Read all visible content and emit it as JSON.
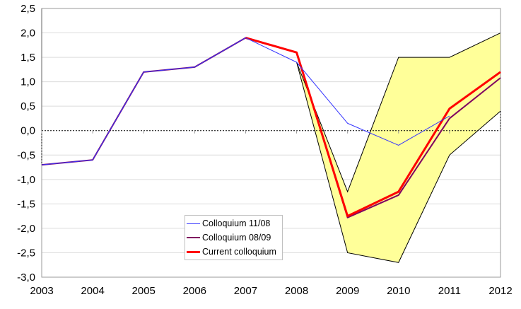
{
  "chart_data": {
    "type": "line",
    "title": "",
    "xlabel": "",
    "ylabel": "",
    "x": [
      "2003",
      "2004",
      "2005",
      "2006",
      "2007",
      "2008",
      "2009",
      "2010",
      "2011",
      "2012"
    ],
    "ylim": [
      -3.0,
      2.5
    ],
    "yticks": [
      "2,5",
      "2,0",
      "1,5",
      "1,0",
      "0,5",
      "0,0",
      "-0,5",
      "-1,0",
      "-1,5",
      "-2,0",
      "-2,5",
      "-3,0"
    ],
    "grid": true,
    "legend_position": "lower-center inside plot",
    "series": [
      {
        "name": "Colloquium 11/08",
        "color": "#3333ff",
        "width": 1,
        "values": [
          -0.7,
          -0.6,
          1.2,
          1.3,
          1.9,
          1.4,
          0.15,
          -0.3,
          0.3,
          null
        ]
      },
      {
        "name": "Colloquium 08/09",
        "color": "#800060",
        "width": 2,
        "values": [
          -0.7,
          -0.6,
          1.2,
          1.3,
          1.9,
          1.6,
          -1.78,
          -1.32,
          0.25,
          1.08
        ]
      },
      {
        "name": "Current colloquium",
        "color": "#ff0000",
        "width": 3,
        "values": [
          null,
          null,
          null,
          null,
          1.9,
          1.6,
          -1.75,
          -1.25,
          0.45,
          1.2
        ]
      }
    ],
    "band": {
      "fill": "#ffff99",
      "upper": [
        null,
        null,
        null,
        null,
        null,
        1.4,
        -1.25,
        1.5,
        1.5,
        2.0
      ],
      "lower": [
        null,
        null,
        null,
        null,
        null,
        1.4,
        -2.5,
        -2.7,
        -0.5,
        0.4
      ]
    }
  }
}
